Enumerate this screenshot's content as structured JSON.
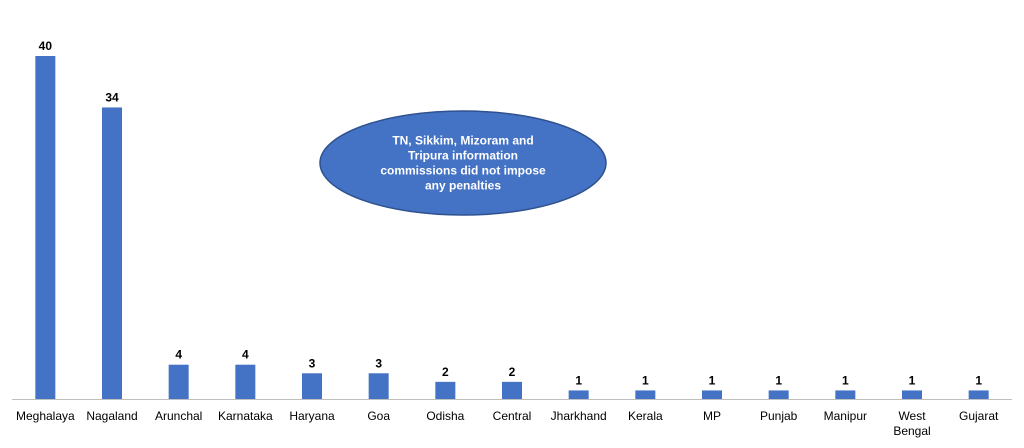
{
  "chart_data": {
    "type": "bar",
    "categories": [
      "Meghalaya",
      "Nagaland",
      "Arunchal",
      "Karnataka",
      "Haryana",
      "Goa",
      "Odisha",
      "Central",
      "Jharkhand",
      "Kerala",
      "MP",
      "Punjab",
      "Manipur",
      "West Bengal",
      "Gujarat"
    ],
    "values": [
      40,
      34,
      4,
      4,
      3,
      3,
      2,
      2,
      1,
      1,
      1,
      1,
      1,
      1,
      1
    ],
    "color": "#4472c4",
    "annotation": [
      "TN, Sikkim, Mizoram and",
      "Tripura information",
      "commissions did not impose",
      "any penalties"
    ]
  }
}
